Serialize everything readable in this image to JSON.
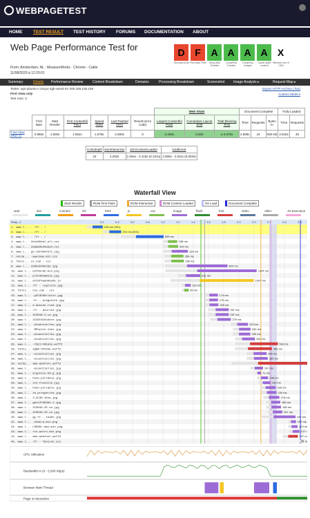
{
  "brand": "WEBPAGETEST",
  "nav": [
    "HOME",
    "TEST RESULT",
    "TEST HISTORY",
    "FORUMS",
    "DOCUMENTATION",
    "ABOUT"
  ],
  "title": "Web Page Performance Test for",
  "grades": [
    {
      "letter": "D",
      "label": "Security score",
      "color": "#e8472d"
    },
    {
      "letter": "F",
      "label": "First Byte Time",
      "color": "#e8472d"
    },
    {
      "letter": "A",
      "label": "Keep-alive Enabled",
      "color": "#4cbb4c"
    },
    {
      "letter": "A",
      "label": "Compress Transfer",
      "color": "#4cbb4c"
    },
    {
      "letter": "A",
      "label": "Compress Images",
      "color": "#4cbb4c"
    },
    {
      "letter": "A",
      "label": "Cache static content",
      "color": "#4cbb4c"
    },
    {
      "letter": "X",
      "label": "Effective use of CDN",
      "color": "#ffffff"
    }
  ],
  "from": "From: Amsterdam, NL - MeasureWorks - Chrome - Cable",
  "date": "11/08/2020 à 12:20:01",
  "subnav": [
    "Summary",
    "Details",
    "Performance Review",
    "Content Breakdown",
    "Domains",
    "Processing Breakdown",
    "Screenshot",
    "Image Analysis ▸",
    "Request Map ▸"
  ],
  "tester": "Tester: wpt-ubuntu-c-2vcpu-4gb-ams3-01-206.189.108.106",
  "first_view": "First View only",
  "test_runs": "Test runs: 3",
  "export": "Export HTTP Archive (.har)",
  "custom_metrics": "Custom Metrics",
  "results": {
    "group_web_vitals": "Web Vitals",
    "group_doc": "Document Complete",
    "group_full": "Fully Loaded",
    "headers": [
      "First Byte",
      "Start Render",
      "First Contentful Paint",
      "Speed Index",
      "Last Painted Hero",
      "Result (error code)",
      "Largest Contentful Paint",
      "Cumulative Layout Shift",
      "Total Blocking Time",
      "Time",
      "Requests",
      "Bytes In",
      "Time",
      "Requests"
    ],
    "row_label": "First View (Run 1)",
    "values": [
      "0.965s",
      "1.500s",
      "1.552s",
      "1.578s",
      "2.500s",
      "0",
      "2.459s",
      "0.004",
      "≥ 0.070s",
      "2.808s",
      "44",
      "930 KB",
      "2.615s",
      "45"
    ]
  },
  "dom": {
    "headers": [
      "Colordepth",
      "domInteractive",
      "domContentLoaded",
      "loadEvent"
    ],
    "values": [
      "24",
      "2.293s",
      "2.294s - 2.415s (0.121s)",
      "2.808s - 2.811s (0.003s)"
    ]
  },
  "waterfall_title": "Waterfall View",
  "legend": [
    "Start Render",
    "RUM First Paint",
    "DOM Interactive",
    "DOM Content Loaded",
    "On Load",
    "Document Complete"
  ],
  "types": [
    "wait",
    "dns",
    "connect",
    "ssl",
    "html",
    "js",
    "css",
    "image",
    "flash",
    "font",
    "video",
    "other",
    "JS Execution"
  ],
  "step": "Step_1",
  "ticks": [
    "0.2",
    "0.4",
    "0.6",
    "0.8",
    "1.0",
    "1.2",
    "1.4",
    "1.6",
    "1.8",
    "2.0",
    "2.2",
    "2.4",
    "2.6",
    "2.8"
  ],
  "requests": [
    {
      "name": "1. www.l... - /fr - /",
      "ms": "208 ms (301)"
    },
    {
      "name": "2. www.l... - /fr - /",
      "ms": "241 ms (301)"
    },
    {
      "name": "3. www.l... - /fr - /",
      "ms": "559 ms"
    },
    {
      "name": "4. www.l... 2e1e884ef_all.css",
      "ms": "188 ms"
    },
    {
      "name": "5. www.l... 2e0ab0534aded.css",
      "ms": "200 ms"
    },
    {
      "name": "6. www.l... go-15f3507571.jpg",
      "ms": "329 ms"
    },
    {
      "name": "7. netde... -awesome.min.css",
      "ms": "250 ms"
    },
    {
      "name": "8. fonts... ss.com - css",
      "ms": "256 ms"
    },
    {
      "name": "9. www.l... 22bbd220onde.jpg",
      "ms": "820 ms"
    },
    {
      "name": "10. www.l... e2f0onde-min.png",
      "ms": "1204 ms"
    },
    {
      "name": "11. www.l... pr2C3Dhamnie.jpg",
      "ms": "291 ms"
    },
    {
      "name": "12. www.l... af23f4aab0ee6e.js",
      "ms": "1097 ms"
    },
    {
      "name": "13. www.l... /fr - luglitte.jpg",
      "ms": "116 ms"
    },
    {
      "name": "14. fonts... ole.com - css",
      "ms": "89 ms"
    },
    {
      "name": "15. www.l... -p2C3D49rlalot.jpg",
      "ms": "174 ms"
    },
    {
      "name": "16. www.l... /fr - aragonite.jpg",
      "ms": "175 ms"
    },
    {
      "name": "17. www.l... e-mousse-rose.jpg",
      "ms": "180 ms"
    },
    {
      "name": "18. www.l... /fr - azurite.jpg",
      "ms": "267 ms"
    },
    {
      "name": "19. www.l... 2C3D48-3-ce.jpg",
      "ms": "267 ms"
    },
    {
      "name": "20. www.l... 2C3Dt615odore.jpg",
      "ms": "275 ms"
    },
    {
      "name": "21. www.l... -essentielles.jpg",
      "ms": "220 ms"
    },
    {
      "name": "22. www.l... -RPhytte-1tmi.jpg",
      "ms": "234 ms"
    },
    {
      "name": "23. www.l... -essentielles.jpg",
      "ms": "230 ms"
    },
    {
      "name": "24. www.l... -essentielles.jpg",
      "ms": "261 ms"
    },
    {
      "name": "25. www.l... -rEE1r42Eube.woff2",
      "ms": "563 ms"
    },
    {
      "name": "26. fonts... 2pBA-UFV23e.woff2",
      "ms": "485 ms"
    },
    {
      "name": "27. www.l... -essentielles.jpg",
      "ms": "265 ms"
    },
    {
      "name": "28. www.l... -essentielles.jpg",
      "ms": "280 ms"
    },
    {
      "name": "29. netde... ome-webfont.woff2",
      "ms": "1006 ms"
    },
    {
      "name": "30. www.l... -essentielles.jpg",
      "ms": "167 ms"
    },
    {
      "name": "31. www.l... argonite-59-g.jpg",
      "ms": "71 ms"
    },
    {
      "name": "32. www.l... hone-portable.jpg",
      "ms": "145 ms"
    },
    {
      "name": "33. www.l... ite-fosonite.jpg",
      "ms": "155 ms"
    },
    {
      "name": "34. www.l... hone-portable.jpg",
      "ms": "205 ms"
    },
    {
      "name": "35. www.l... te-prosperite.jpg",
      "ms": "195 ms"
    },
    {
      "name": "36. www.l... 3-2C3D-15ne.jpg",
      "ms": "213 ms"
    },
    {
      "name": "37. www.l... gent2C3D49e-1.jpg",
      "ms": "185 ms"
    },
    {
      "name": "38. www.l... 2C3D49-25-ce.jpg",
      "ms": "195 ms"
    },
    {
      "name": "39. www.l... 2C3D49-25-ce.jpg",
      "ms": "191 ms"
    },
    {
      "name": "40. www.l... gy.fr - index.jpg",
      "ms": "447 ms"
    },
    {
      "name": "41. www.l... -chakra-min.png",
      "ms": "102 ms"
    },
    {
      "name": "42. www.l... C3D69r-max-min.png",
      "ms": "123 ms"
    },
    {
      "name": "43. www.l... rio-astro-min.png",
      "ms": "137 ms"
    },
    {
      "name": "44. www.l... ome-webfont.woff2",
      "ms": "197 ms"
    },
    {
      "name": "45. www.l... /fr - favicon.ico",
      "ms": "56 ms"
    }
  ],
  "metrics_labels": [
    "CPU Utilization",
    "Bandwidth In (0 - 5,000 Kbps)",
    "Browser Main Thread",
    "Page is Interactive"
  ]
}
